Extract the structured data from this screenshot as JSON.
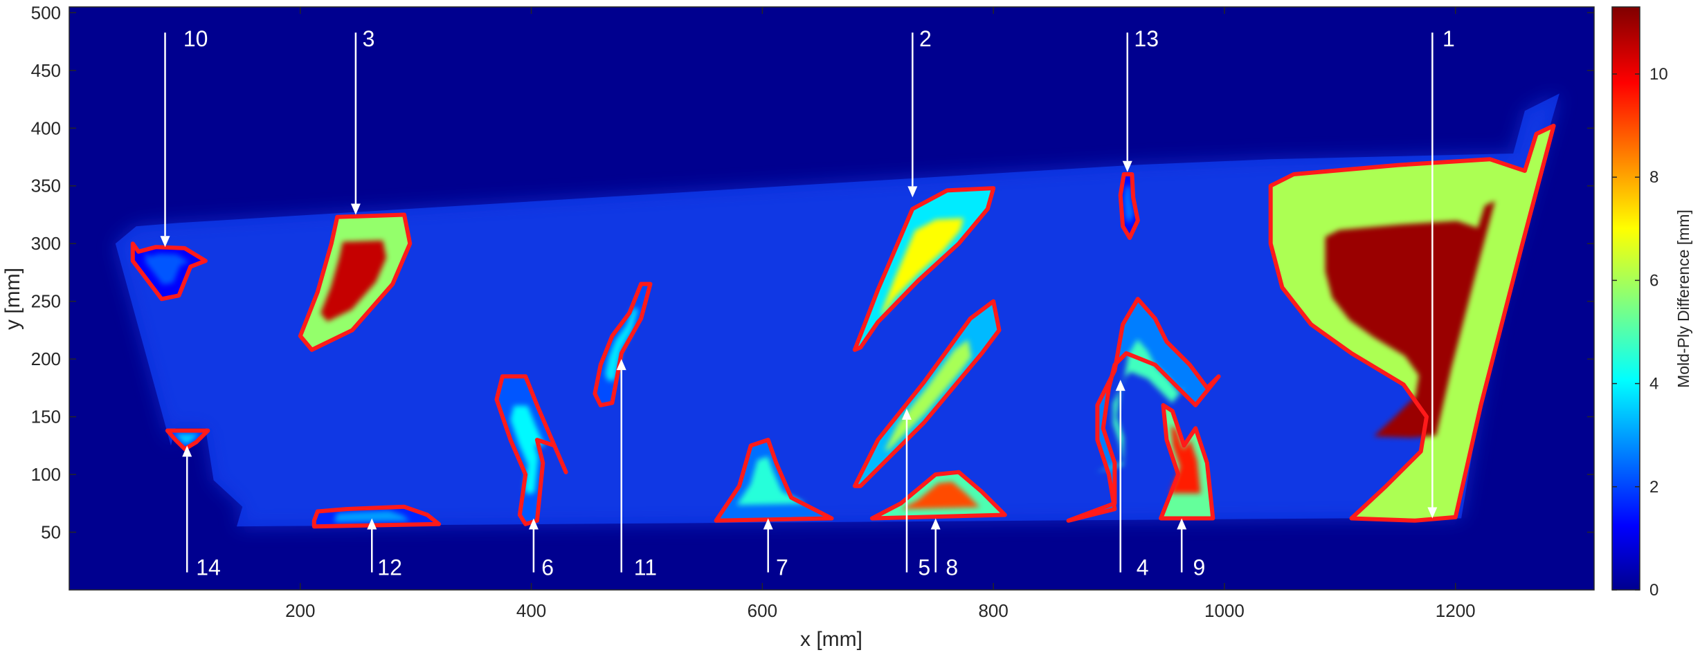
{
  "chart_data": {
    "type": "heatmap",
    "xlabel": "x [mm]",
    "ylabel": "y [mm]",
    "xlim": [
      0,
      1320
    ],
    "ylim": [
      0,
      505
    ],
    "xticks": [
      200,
      400,
      600,
      800,
      1000,
      1200
    ],
    "yticks": [
      50,
      100,
      150,
      200,
      250,
      300,
      350,
      400,
      450,
      500
    ],
    "colorbar": {
      "label": "Mold-Ply Difference [mm]",
      "range": [
        0,
        11.3
      ],
      "ticks": [
        0,
        2,
        4,
        6,
        8,
        10
      ],
      "colormap": "jet"
    },
    "background_color": "#00008f",
    "part_outline": [
      [
        95,
        318
      ],
      [
        920,
        368
      ],
      [
        1040,
        373
      ],
      [
        1250,
        378
      ],
      [
        1260,
        415
      ],
      [
        1290,
        430
      ],
      [
        1235,
        240
      ],
      [
        1205,
        62
      ],
      [
        1100,
        62
      ],
      [
        145,
        55
      ],
      [
        150,
        72
      ],
      [
        125,
        95
      ],
      [
        118,
        140
      ],
      [
        92,
        140
      ],
      [
        88,
        125
      ],
      [
        40,
        300
      ],
      [
        58,
        315
      ]
    ],
    "regions": [
      {
        "id": "10",
        "label_xy": [
          97,
          478
        ],
        "arrow_tip": [
          83,
          297
        ],
        "peak": 2.2,
        "outline": [
          [
            55,
            300
          ],
          [
            60,
            293
          ],
          [
            75,
            297
          ],
          [
            100,
            296
          ],
          [
            118,
            285
          ],
          [
            105,
            280
          ],
          [
            95,
            255
          ],
          [
            80,
            252
          ],
          [
            55,
            285
          ]
        ]
      },
      {
        "id": "3",
        "label_xy": [
          252,
          478
        ],
        "arrow_tip": [
          248,
          325
        ],
        "peak": 10.5,
        "outline": [
          [
            232,
            323
          ],
          [
            290,
            325
          ],
          [
            295,
            300
          ],
          [
            280,
            265
          ],
          [
            245,
            225
          ],
          [
            210,
            208
          ],
          [
            200,
            220
          ],
          [
            215,
            258
          ],
          [
            227,
            300
          ]
        ]
      },
      {
        "id": "2",
        "label_xy": [
          734,
          478
        ],
        "arrow_tip": [
          730,
          340
        ],
        "peak": 7,
        "outline": [
          [
            680,
            208
          ],
          [
            700,
            260
          ],
          [
            730,
            330
          ],
          [
            760,
            346
          ],
          [
            800,
            348
          ],
          [
            795,
            330
          ],
          [
            770,
            300
          ],
          [
            735,
            268
          ],
          [
            700,
            232
          ],
          [
            685,
            210
          ]
        ]
      },
      {
        "id": "13",
        "label_xy": [
          920,
          478
        ],
        "arrow_tip": [
          916,
          362
        ],
        "peak": 2.5,
        "outline": [
          [
            913,
            360
          ],
          [
            920,
            360
          ],
          [
            921,
            340
          ],
          [
            925,
            320
          ],
          [
            918,
            305
          ],
          [
            912,
            315
          ],
          [
            910,
            342
          ]
        ]
      },
      {
        "id": "1",
        "label_xy": [
          1187,
          478
        ],
        "arrow_tip": [
          1180,
          62
        ],
        "peak": 11,
        "outline": [
          [
            1040,
            350
          ],
          [
            1060,
            360
          ],
          [
            1150,
            368
          ],
          [
            1230,
            373
          ],
          [
            1260,
            363
          ],
          [
            1270,
            395
          ],
          [
            1285,
            402
          ],
          [
            1258,
            300
          ],
          [
            1222,
            160
          ],
          [
            1200,
            63
          ],
          [
            1165,
            60
          ],
          [
            1110,
            62
          ],
          [
            1140,
            90
          ],
          [
            1170,
            120
          ],
          [
            1175,
            150
          ],
          [
            1155,
            178
          ],
          [
            1110,
            205
          ],
          [
            1075,
            230
          ],
          [
            1050,
            262
          ],
          [
            1040,
            300
          ]
        ]
      },
      {
        "id": "14",
        "label_xy": [
          108,
          20
        ],
        "arrow_tip": [
          102,
          125
        ],
        "peak": 3.5,
        "outline": [
          [
            85,
            138
          ],
          [
            120,
            138
          ],
          [
            110,
            128
          ],
          [
            100,
            122
          ],
          [
            92,
            130
          ]
        ]
      },
      {
        "id": "12",
        "label_xy": [
          265,
          20
        ],
        "arrow_tip": [
          262,
          62
        ],
        "peak": 3,
        "outline": [
          [
            212,
            60
          ],
          [
            215,
            68
          ],
          [
            240,
            70
          ],
          [
            290,
            72
          ],
          [
            310,
            65
          ],
          [
            320,
            57
          ],
          [
            212,
            55
          ]
        ]
      },
      {
        "id": "6",
        "label_xy": [
          407,
          20
        ],
        "arrow_tip": [
          402,
          62
        ],
        "peak": 4,
        "outline": [
          [
            395,
            57
          ],
          [
            405,
            60
          ],
          [
            410,
            110
          ],
          [
            405,
            130
          ],
          [
            420,
            125
          ],
          [
            430,
            102
          ],
          [
            420,
            125
          ],
          [
            405,
            160
          ],
          [
            395,
            185
          ],
          [
            375,
            185
          ],
          [
            370,
            165
          ],
          [
            382,
            130
          ],
          [
            395,
            100
          ],
          [
            390,
            65
          ]
        ]
      },
      {
        "id": "11",
        "label_xy": [
          487,
          20
        ],
        "arrow_tip": [
          478,
          200
        ],
        "peak": 3.8,
        "outline": [
          [
            460,
            160
          ],
          [
            470,
            162
          ],
          [
            478,
            205
          ],
          [
            495,
            235
          ],
          [
            503,
            265
          ],
          [
            495,
            265
          ],
          [
            485,
            240
          ],
          [
            470,
            220
          ],
          [
            460,
            195
          ],
          [
            455,
            170
          ]
        ]
      },
      {
        "id": "7",
        "label_xy": [
          610,
          20
        ],
        "arrow_tip": [
          605,
          62
        ],
        "peak": 4.5,
        "outline": [
          [
            560,
            60
          ],
          [
            580,
            90
          ],
          [
            590,
            125
          ],
          [
            605,
            130
          ],
          [
            612,
            110
          ],
          [
            625,
            80
          ],
          [
            660,
            62
          ]
        ]
      },
      {
        "id": "5",
        "label_xy": [
          733,
          20
        ],
        "arrow_tip": [
          725,
          157
        ],
        "peak": 6,
        "outline": [
          [
            680,
            90
          ],
          [
            700,
            130
          ],
          [
            740,
            180
          ],
          [
            780,
            235
          ],
          [
            800,
            250
          ],
          [
            805,
            225
          ],
          [
            790,
            205
          ],
          [
            765,
            175
          ],
          [
            740,
            145
          ],
          [
            710,
            115
          ],
          [
            685,
            90
          ]
        ]
      },
      {
        "id": "8",
        "label_xy": [
          757,
          20
        ],
        "arrow_tip": [
          750,
          62
        ],
        "peak": 9,
        "outline": [
          [
            695,
            62
          ],
          [
            720,
            75
          ],
          [
            750,
            100
          ],
          [
            770,
            102
          ],
          [
            790,
            85
          ],
          [
            810,
            65
          ]
        ]
      },
      {
        "id": "4",
        "label_xy": [
          922,
          20
        ],
        "arrow_tip": [
          910,
          182
        ],
        "peak": 4.8,
        "outline": [
          [
            865,
            60
          ],
          [
            905,
            70
          ],
          [
            900,
            100
          ],
          [
            890,
            130
          ],
          [
            890,
            160
          ],
          [
            905,
            190
          ],
          [
            912,
            230
          ],
          [
            925,
            252
          ],
          [
            940,
            235
          ],
          [
            950,
            215
          ],
          [
            970,
            195
          ],
          [
            985,
            175
          ],
          [
            995,
            185
          ],
          [
            975,
            160
          ],
          [
            960,
            175
          ],
          [
            940,
            195
          ],
          [
            915,
            205
          ],
          [
            905,
            195
          ],
          [
            900,
            175
          ],
          [
            895,
            140
          ],
          [
            905,
            110
          ],
          [
            905,
            75
          ]
        ]
      },
      {
        "id": "9",
        "label_xy": [
          971,
          20
        ],
        "arrow_tip": [
          963,
          62
        ],
        "peak": 9.5,
        "outline": [
          [
            945,
            62
          ],
          [
            960,
            100
          ],
          [
            950,
            130
          ],
          [
            947,
            160
          ],
          [
            955,
            155
          ],
          [
            965,
            125
          ],
          [
            975,
            140
          ],
          [
            985,
            110
          ],
          [
            990,
            62
          ]
        ]
      }
    ]
  }
}
